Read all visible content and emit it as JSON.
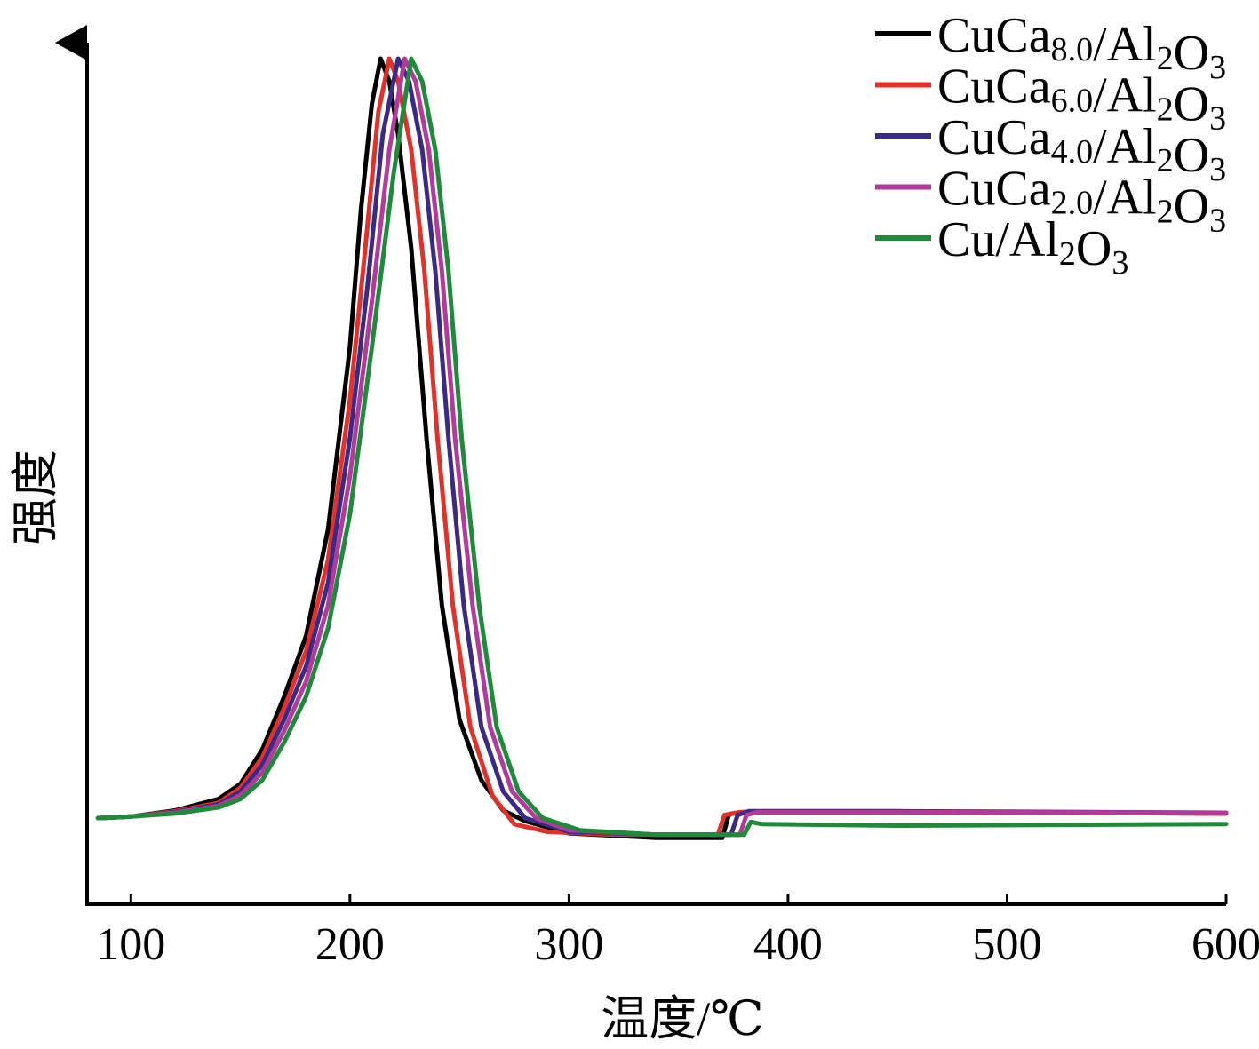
{
  "chart_data": {
    "type": "line",
    "title": "",
    "xlabel": "温度/℃",
    "ylabel": "强度",
    "xlim": [
      80,
      600
    ],
    "ylim": [
      -0.1,
      1.05
    ],
    "x_ticks": [
      100,
      200,
      300,
      400,
      500,
      600
    ],
    "grid": false,
    "legend_position": "top-right",
    "series": [
      {
        "name": "CuCa8.0/Al2O3",
        "legend": {
          "base": "CuCa",
          "sub": "8.0",
          "mid": "/Al",
          "sub2": "2",
          "mid2": "O",
          "sub3": "3"
        },
        "color": "#000000",
        "points": [
          [
            85,
            0.0
          ],
          [
            100,
            0.002
          ],
          [
            120,
            0.01
          ],
          [
            140,
            0.025
          ],
          [
            150,
            0.045
          ],
          [
            160,
            0.09
          ],
          [
            170,
            0.16
          ],
          [
            180,
            0.24
          ],
          [
            190,
            0.38
          ],
          [
            200,
            0.62
          ],
          [
            205,
            0.8
          ],
          [
            210,
            0.94
          ],
          [
            214,
            1.0
          ],
          [
            218,
            0.97
          ],
          [
            222,
            0.9
          ],
          [
            228,
            0.75
          ],
          [
            235,
            0.5
          ],
          [
            242,
            0.28
          ],
          [
            250,
            0.13
          ],
          [
            260,
            0.05
          ],
          [
            270,
            0.01
          ],
          [
            280,
            -0.004
          ],
          [
            300,
            -0.02
          ],
          [
            340,
            -0.026
          ],
          [
            370,
            -0.026
          ],
          [
            373,
            0.005
          ],
          [
            380,
            0.008
          ],
          [
            450,
            0.008
          ],
          [
            600,
            0.006
          ]
        ]
      },
      {
        "name": "CuCa6.0/Al2O3",
        "legend": {
          "base": "CuCa",
          "sub": "6.0",
          "mid": "/Al",
          "sub2": "2",
          "mid2": "O",
          "sub3": "3"
        },
        "color": "#e0322a",
        "points": [
          [
            85,
            0.0
          ],
          [
            100,
            0.002
          ],
          [
            120,
            0.009
          ],
          [
            140,
            0.02
          ],
          [
            150,
            0.04
          ],
          [
            160,
            0.08
          ],
          [
            170,
            0.145
          ],
          [
            180,
            0.22
          ],
          [
            190,
            0.34
          ],
          [
            200,
            0.55
          ],
          [
            207,
            0.75
          ],
          [
            213,
            0.93
          ],
          [
            218,
            1.0
          ],
          [
            222,
            0.97
          ],
          [
            228,
            0.88
          ],
          [
            234,
            0.72
          ],
          [
            240,
            0.5
          ],
          [
            247,
            0.28
          ],
          [
            255,
            0.12
          ],
          [
            265,
            0.03
          ],
          [
            275,
            -0.008
          ],
          [
            290,
            -0.018
          ],
          [
            320,
            -0.022
          ],
          [
            368,
            -0.022
          ],
          [
            371,
            0.004
          ],
          [
            378,
            0.008
          ],
          [
            450,
            0.008
          ],
          [
            600,
            0.006
          ]
        ]
      },
      {
        "name": "CuCa4.0/Al2O3",
        "legend": {
          "base": "CuCa",
          "sub": "4.0",
          "mid": "/Al",
          "sub2": "2",
          "mid2": "O",
          "sub3": "3"
        },
        "color": "#3b2a85",
        "points": [
          [
            85,
            0.0
          ],
          [
            100,
            0.002
          ],
          [
            120,
            0.008
          ],
          [
            140,
            0.018
          ],
          [
            150,
            0.035
          ],
          [
            160,
            0.07
          ],
          [
            170,
            0.13
          ],
          [
            180,
            0.2
          ],
          [
            190,
            0.31
          ],
          [
            200,
            0.5
          ],
          [
            208,
            0.7
          ],
          [
            215,
            0.9
          ],
          [
            222,
            1.0
          ],
          [
            227,
            0.97
          ],
          [
            233,
            0.88
          ],
          [
            239,
            0.72
          ],
          [
            245,
            0.5
          ],
          [
            252,
            0.28
          ],
          [
            260,
            0.12
          ],
          [
            270,
            0.035
          ],
          [
            280,
            0.0
          ],
          [
            300,
            -0.018
          ],
          [
            340,
            -0.022
          ],
          [
            374,
            -0.022
          ],
          [
            377,
            0.004
          ],
          [
            382,
            0.009
          ],
          [
            450,
            0.009
          ],
          [
            600,
            0.007
          ]
        ]
      },
      {
        "name": "CuCa2.0/Al2O3",
        "legend": {
          "base": "CuCa",
          "sub": "2.0",
          "mid": "/Al",
          "sub2": "2",
          "mid2": "O",
          "sub3": "3"
        },
        "color": "#b23a9a",
        "points": [
          [
            85,
            0.0
          ],
          [
            100,
            0.002
          ],
          [
            120,
            0.007
          ],
          [
            140,
            0.016
          ],
          [
            150,
            0.03
          ],
          [
            160,
            0.06
          ],
          [
            170,
            0.115
          ],
          [
            180,
            0.18
          ],
          [
            190,
            0.28
          ],
          [
            200,
            0.45
          ],
          [
            210,
            0.68
          ],
          [
            218,
            0.88
          ],
          [
            225,
            1.0
          ],
          [
            230,
            0.97
          ],
          [
            236,
            0.88
          ],
          [
            242,
            0.72
          ],
          [
            248,
            0.5
          ],
          [
            256,
            0.28
          ],
          [
            264,
            0.12
          ],
          [
            274,
            0.035
          ],
          [
            285,
            0.0
          ],
          [
            300,
            -0.016
          ],
          [
            340,
            -0.022
          ],
          [
            378,
            -0.022
          ],
          [
            381,
            0.004
          ],
          [
            386,
            0.008
          ],
          [
            450,
            0.008
          ],
          [
            600,
            0.007
          ]
        ]
      },
      {
        "name": "Cu/Al2O3",
        "legend": {
          "base": "Cu/Al",
          "sub": "2",
          "mid": "O",
          "sub2": "3",
          "mid2": "",
          "sub3": ""
        },
        "color": "#1f8a3a",
        "points": [
          [
            85,
            0.0
          ],
          [
            100,
            0.002
          ],
          [
            120,
            0.006
          ],
          [
            140,
            0.014
          ],
          [
            150,
            0.025
          ],
          [
            160,
            0.05
          ],
          [
            170,
            0.1
          ],
          [
            180,
            0.16
          ],
          [
            190,
            0.25
          ],
          [
            200,
            0.4
          ],
          [
            210,
            0.62
          ],
          [
            220,
            0.85
          ],
          [
            228,
            1.0
          ],
          [
            233,
            0.97
          ],
          [
            239,
            0.88
          ],
          [
            245,
            0.72
          ],
          [
            251,
            0.5
          ],
          [
            259,
            0.28
          ],
          [
            267,
            0.12
          ],
          [
            277,
            0.035
          ],
          [
            288,
            0.0
          ],
          [
            305,
            -0.016
          ],
          [
            340,
            -0.022
          ],
          [
            380,
            -0.022
          ],
          [
            383,
            -0.005
          ],
          [
            388,
            -0.008
          ],
          [
            450,
            -0.01
          ],
          [
            600,
            -0.008
          ]
        ]
      }
    ]
  }
}
